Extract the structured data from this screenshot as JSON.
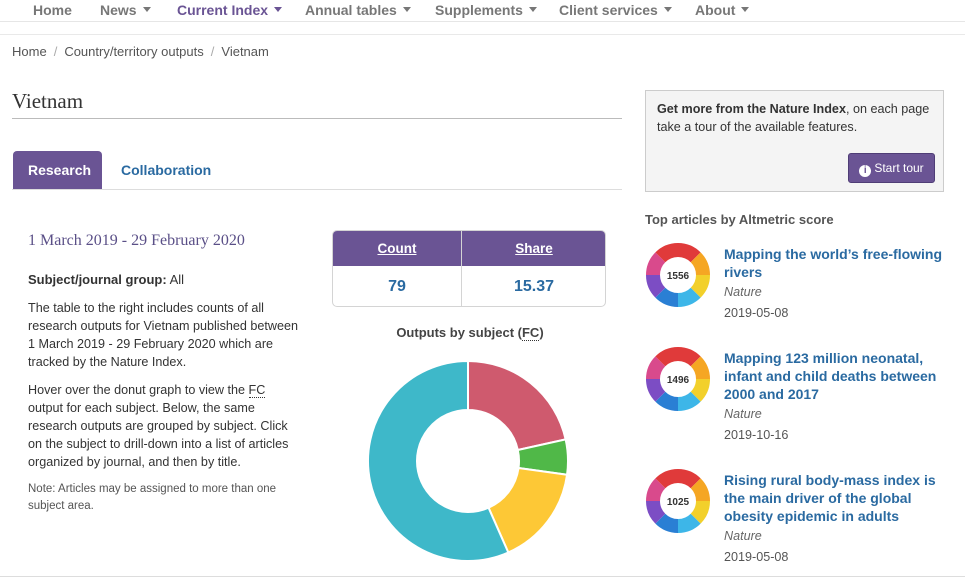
{
  "nav": {
    "items": [
      {
        "label": "Home",
        "caret": false
      },
      {
        "label": "News",
        "caret": true
      },
      {
        "label": "Current Index",
        "caret": true,
        "active": true
      },
      {
        "label": "Annual tables",
        "caret": true
      },
      {
        "label": "Supplements",
        "caret": true
      },
      {
        "label": "Client services",
        "caret": true
      },
      {
        "label": "About",
        "caret": true
      }
    ]
  },
  "breadcrumb": [
    "Home",
    "Country/territory outputs",
    "Vietnam"
  ],
  "page_title": "Vietnam",
  "tabs": [
    {
      "label": "Research",
      "active": true
    },
    {
      "label": "Collaboration",
      "active": false
    }
  ],
  "research": {
    "date_range": "1 March 2019 - 29 February 2020",
    "subject_group_label": "Subject/journal group:",
    "subject_group_value": "All",
    "para1": "The table to the right includes counts of all research outputs for Vietnam published between 1 March 2019 - 29 February 2020 which are tracked by the Nature Index.",
    "para2_before": "Hover over the donut graph to view the ",
    "para2_abbr": "FC",
    "para2_after": " output for each subject. Below, the same research outputs are grouped by subject. Click on the subject to drill-down into a list of articles organized by journal, and then by title.",
    "note": "Note: Articles may be assigned to more than one subject area."
  },
  "stats": {
    "count_label": "Count",
    "share_label": "Share",
    "count_value": "79",
    "share_value": "15.37"
  },
  "chart_title_before": "Outputs by subject (",
  "chart_title_abbr": "FC",
  "chart_title_after": ")",
  "chart_data": {
    "type": "pie",
    "donut": true,
    "slices": [
      {
        "value": 3.31,
        "color": "#cf5a6e"
      },
      {
        "value": 0.87,
        "color": "#50b848"
      },
      {
        "value": 2.49,
        "color": "#fdc836"
      },
      {
        "value": 8.7,
        "color": "#3eb8c9"
      }
    ],
    "total": 15.37
  },
  "promo": {
    "bold": "Get more from the Nature Index",
    "rest": ", on each page take a tour of the available features.",
    "button_label": "Start tour",
    "button_icon": "info-icon"
  },
  "top_articles": {
    "heading": "Top articles by Altmetric score",
    "items": [
      {
        "score": "1556",
        "title": "Mapping the world’s free-flowing rivers",
        "journal": "Nature",
        "date": "2019-05-08"
      },
      {
        "score": "1496",
        "title": "Mapping 123 million neonatal, infant and child deaths between 2000 and 2017",
        "journal": "Nature",
        "date": "2019-10-16"
      },
      {
        "score": "1025",
        "title": "Rising rural body-mass index is the main driver of the global obesity epidemic in adults",
        "journal": "Nature",
        "date": "2019-05-08"
      }
    ]
  },
  "colors": {
    "purple": "#6a5494",
    "link_blue": "#2a6aa1"
  }
}
